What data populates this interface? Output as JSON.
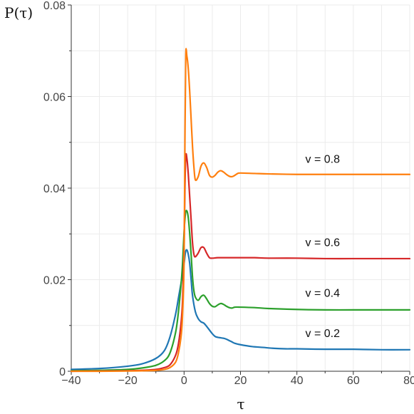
{
  "chart_data": {
    "type": "line",
    "ylabel": "P(τ)",
    "xlabel": "τ",
    "xlim": [
      -40,
      80
    ],
    "ylim": [
      0,
      0.08
    ],
    "x_ticks": [
      -40,
      -20,
      0,
      20,
      40,
      60,
      80
    ],
    "x_tick_labels": [
      "−40",
      "−20",
      "0",
      "20",
      "40",
      "60",
      "80"
    ],
    "y_ticks": [
      0,
      0.02,
      0.04,
      0.06,
      0.08
    ],
    "y_tick_labels": [
      "0",
      "0.02",
      "0.04",
      "0.06",
      "0.08"
    ],
    "grid": true,
    "series": [
      {
        "name": "v = 0.2",
        "color": "#1f77b4",
        "x": [
          -40,
          -30,
          -20,
          -15,
          -10,
          -7,
          -5,
          -3,
          -2,
          -1,
          -0.5,
          0,
          0.5,
          1,
          1.5,
          2,
          2.5,
          3,
          4,
          5,
          6,
          7,
          8,
          9,
          10,
          11,
          12,
          13,
          14,
          15,
          16,
          17,
          18,
          20,
          24,
          28,
          32,
          36,
          40,
          50,
          60,
          70,
          80
        ],
        "y": [
          0.0004,
          0.0006,
          0.0011,
          0.0016,
          0.0028,
          0.0045,
          0.0075,
          0.0125,
          0.016,
          0.0195,
          0.0215,
          0.0235,
          0.026,
          0.0265,
          0.0255,
          0.0235,
          0.02,
          0.0165,
          0.013,
          0.0115,
          0.0108,
          0.0105,
          0.0098,
          0.009,
          0.0082,
          0.0076,
          0.0074,
          0.0073,
          0.0072,
          0.007,
          0.0067,
          0.0064,
          0.0061,
          0.0058,
          0.0054,
          0.0052,
          0.005,
          0.0049,
          0.0049,
          0.0048,
          0.0048,
          0.0047,
          0.0047
        ],
        "label_text": "v = 0.2",
        "label_pos": [
          43,
          0.0075
        ]
      },
      {
        "name": "v = 0.4",
        "color": "#2ca02c",
        "x": [
          -40,
          -30,
          -20,
          -15,
          -10,
          -7,
          -5,
          -3,
          -2,
          -1,
          -0.5,
          0,
          0.5,
          1,
          1.5,
          2,
          2.5,
          3,
          3.5,
          4,
          5,
          6,
          7,
          8,
          9,
          10,
          11,
          12,
          13,
          14,
          15,
          16,
          17,
          18,
          20,
          25,
          30,
          40,
          50,
          60,
          70,
          80
        ],
        "y": [
          0.0001,
          0.0002,
          0.0004,
          0.0007,
          0.0013,
          0.0023,
          0.004,
          0.0085,
          0.013,
          0.0195,
          0.024,
          0.0305,
          0.0345,
          0.035,
          0.0335,
          0.03,
          0.0255,
          0.0205,
          0.0175,
          0.0162,
          0.0155,
          0.0163,
          0.0166,
          0.0158,
          0.0148,
          0.0142,
          0.0141,
          0.0145,
          0.0148,
          0.0146,
          0.0142,
          0.0139,
          0.0138,
          0.014,
          0.014,
          0.0139,
          0.0137,
          0.0135,
          0.0134,
          0.0134,
          0.0134,
          0.0134
        ],
        "label_text": "v = 0.4",
        "label_pos": [
          43,
          0.0163
        ]
      },
      {
        "name": "v = 0.6",
        "color": "#d62728",
        "x": [
          -40,
          -30,
          -20,
          -15,
          -10,
          -7,
          -5,
          -3,
          -2,
          -1,
          -0.5,
          0,
          0.3,
          0.6,
          1,
          1.5,
          2,
          2.5,
          3,
          3.5,
          4,
          5,
          6,
          7,
          8,
          9,
          10,
          12,
          15,
          20,
          25,
          30,
          40,
          50,
          60,
          70,
          80
        ],
        "y": [
          0,
          5e-05,
          0.0001,
          0.0002,
          0.0004,
          0.0008,
          0.0014,
          0.0035,
          0.006,
          0.011,
          0.016,
          0.027,
          0.04,
          0.047,
          0.0465,
          0.043,
          0.038,
          0.033,
          0.028,
          0.0255,
          0.025,
          0.0258,
          0.027,
          0.027,
          0.0258,
          0.0248,
          0.0247,
          0.0248,
          0.0248,
          0.0248,
          0.0248,
          0.0247,
          0.0247,
          0.0246,
          0.0246,
          0.0246,
          0.0246
        ],
        "label_text": "v = 0.6",
        "label_pos": [
          43,
          0.0273
        ]
      },
      {
        "name": "v = 0.8",
        "color": "#ff7f0e",
        "x": [
          -40,
          -30,
          -20,
          -15,
          -10,
          -7,
          -5,
          -3,
          -2,
          -1,
          -0.5,
          0,
          0.3,
          0.6,
          1,
          1.5,
          2,
          2.5,
          3,
          3.5,
          4,
          5,
          6,
          7,
          8,
          9,
          10,
          11,
          12,
          13,
          14,
          15,
          16,
          17,
          18,
          19,
          20,
          25,
          30,
          40,
          50,
          60,
          70,
          80
        ],
        "y": [
          0,
          0,
          5e-05,
          0.0001,
          0.0002,
          0.0004,
          0.0008,
          0.002,
          0.004,
          0.008,
          0.013,
          0.024,
          0.05,
          0.069,
          0.0688,
          0.066,
          0.061,
          0.055,
          0.049,
          0.0445,
          0.0418,
          0.0425,
          0.0448,
          0.0455,
          0.0445,
          0.0428,
          0.0424,
          0.0428,
          0.0435,
          0.0438,
          0.0435,
          0.043,
          0.0426,
          0.0425,
          0.0428,
          0.0432,
          0.0433,
          0.0432,
          0.0431,
          0.043,
          0.043,
          0.043,
          0.043,
          0.043
        ],
        "label_text": "v = 0.8",
        "label_pos": [
          43,
          0.0455
        ]
      }
    ]
  }
}
